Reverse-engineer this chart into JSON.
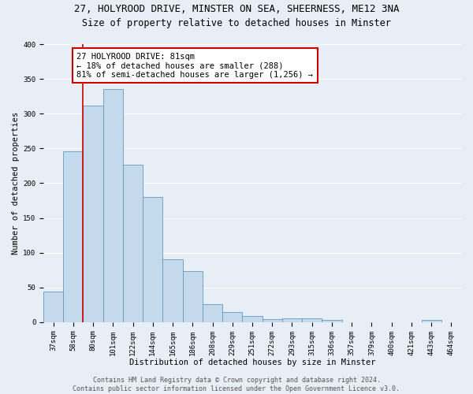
{
  "title_line1": "27, HOLYROOD DRIVE, MINSTER ON SEA, SHEERNESS, ME12 3NA",
  "title_line2": "Size of property relative to detached houses in Minster",
  "xlabel": "Distribution of detached houses by size in Minster",
  "ylabel": "Number of detached properties",
  "bin_labels": [
    "37sqm",
    "58sqm",
    "80sqm",
    "101sqm",
    "122sqm",
    "144sqm",
    "165sqm",
    "186sqm",
    "208sqm",
    "229sqm",
    "251sqm",
    "272sqm",
    "293sqm",
    "315sqm",
    "336sqm",
    "357sqm",
    "379sqm",
    "400sqm",
    "421sqm",
    "443sqm",
    "464sqm"
  ],
  "bar_values": [
    44,
    246,
    312,
    335,
    227,
    180,
    90,
    74,
    26,
    15,
    9,
    4,
    5,
    5,
    3,
    0,
    0,
    0,
    0,
    3,
    0
  ],
  "bar_color": "#c5d9ed",
  "bar_edge_color": "#6699bb",
  "property_sqm": 81,
  "annotation_text": "27 HOLYROOD DRIVE: 81sqm\n← 18% of detached houses are smaller (288)\n81% of semi-detached houses are larger (1,256) →",
  "annotation_box_color": "white",
  "annotation_box_edge": "#cc0000",
  "vline_color": "#cc0000",
  "ylim": [
    0,
    400
  ],
  "yticks": [
    0,
    50,
    100,
    150,
    200,
    250,
    300,
    350,
    400
  ],
  "footer_line1": "Contains HM Land Registry data © Crown copyright and database right 2024.",
  "footer_line2": "Contains public sector information licensed under the Open Government Licence v3.0.",
  "background_color": "#e8eef5",
  "plot_bg_color": "#e8eef5",
  "grid_color": "white",
  "title_fontsize": 9,
  "subtitle_fontsize": 8.5,
  "axis_label_fontsize": 7.5,
  "tick_fontsize": 6.5,
  "annotation_fontsize": 7.5,
  "footer_fontsize": 6
}
